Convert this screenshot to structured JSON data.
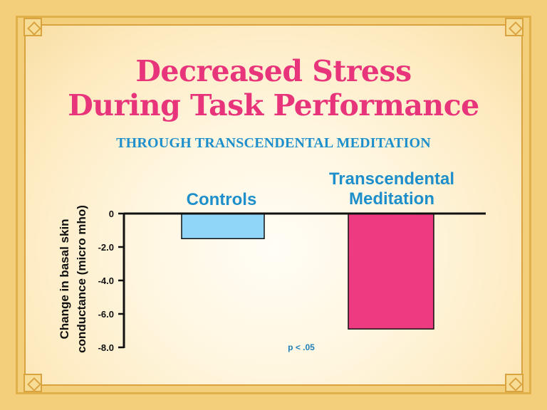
{
  "title_line1": "Decreased Stress",
  "title_line2": "During Task Performance",
  "subtitle": "THROUGH TRANSCENDENTAL MEDITATION",
  "colors": {
    "title": "#e8347a",
    "subtitle": "#1f8fcb",
    "controls_bar": "#8fd6f8",
    "tm_bar": "#ee3a80",
    "frame": "#d9a440"
  },
  "chart_data": {
    "type": "bar",
    "title": "Decreased Stress During Task Performance",
    "subtitle": "THROUGH TRANSCENDENTAL MEDITATION",
    "categories": [
      "Controls",
      "Transcendental Meditation"
    ],
    "category_label_lines": [
      [
        "Controls"
      ],
      [
        "Transcendental",
        "Meditation"
      ]
    ],
    "values": [
      -1.5,
      -6.9
    ],
    "xlabel": "",
    "ylabel": "Change in basal skin conductance (micro mho)",
    "ylabel_lines": [
      "Change in basal skin",
      "conductance (micro mho)"
    ],
    "ylim": [
      -8.0,
      0
    ],
    "yticks": [
      0,
      -2.0,
      -4.0,
      -6.0,
      -8.0
    ],
    "ytick_labels": [
      "0",
      "-2.0",
      "-4.0",
      "-6.0",
      "-8.0"
    ],
    "annotations": [
      "p < .05"
    ],
    "grid": false,
    "legend": "none"
  }
}
